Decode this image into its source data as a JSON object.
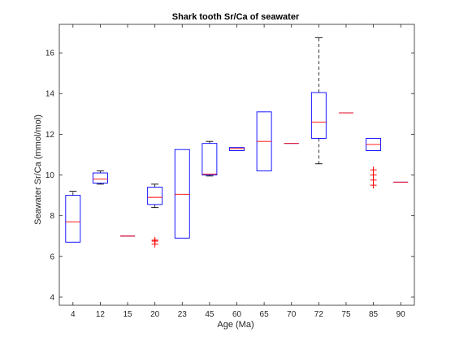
{
  "chart_data": {
    "type": "box",
    "title": "Shark tooth Sr/Ca of seawater",
    "xlabel": "Age (Ma)",
    "ylabel": "Seawater Sr/Ca (mmol/mol)",
    "ylim": [
      3.6,
      17.4
    ],
    "yticks": [
      4,
      6,
      8,
      10,
      12,
      14,
      16
    ],
    "grid": false,
    "categories": [
      "4",
      "12",
      "15",
      "20",
      "23",
      "45",
      "60",
      "65",
      "70",
      "72",
      "75",
      "85",
      "90"
    ],
    "boxes": [
      {
        "whisker_low": 6.7,
        "q1": 6.7,
        "median": 7.7,
        "q3": 9.0,
        "whisker_high": 9.2,
        "outliers": []
      },
      {
        "whisker_low": 9.55,
        "q1": 9.6,
        "median": 9.8,
        "q3": 10.1,
        "whisker_high": 10.2,
        "outliers": []
      },
      {
        "whisker_low": 7.0,
        "q1": 7.0,
        "median": 7.0,
        "q3": 7.0,
        "whisker_high": 7.0,
        "outliers": []
      },
      {
        "whisker_low": 8.4,
        "q1": 8.55,
        "median": 8.9,
        "q3": 9.4,
        "whisker_high": 9.55,
        "outliers": [
          6.6,
          6.75,
          6.8
        ]
      },
      {
        "whisker_low": 6.9,
        "q1": 6.9,
        "median": 9.05,
        "q3": 11.25,
        "whisker_high": 11.25,
        "outliers": []
      },
      {
        "whisker_low": 9.95,
        "q1": 10.0,
        "median": 10.05,
        "q3": 11.55,
        "whisker_high": 11.65,
        "outliers": []
      },
      {
        "whisker_low": 11.2,
        "q1": 11.2,
        "median": 11.3,
        "q3": 11.35,
        "whisker_high": 11.35,
        "outliers": []
      },
      {
        "whisker_low": 10.2,
        "q1": 10.2,
        "median": 11.65,
        "q3": 13.1,
        "whisker_high": 13.1,
        "outliers": []
      },
      {
        "whisker_low": 11.55,
        "q1": 11.55,
        "median": 11.55,
        "q3": 11.55,
        "whisker_high": 11.55,
        "outliers": []
      },
      {
        "whisker_low": 10.55,
        "q1": 11.8,
        "median": 12.6,
        "q3": 14.05,
        "whisker_high": 16.75,
        "outliers": []
      },
      {
        "whisker_low": 13.05,
        "q1": 13.05,
        "median": 13.05,
        "q3": 13.05,
        "whisker_high": 13.05,
        "outliers": []
      },
      {
        "whisker_low": 11.2,
        "q1": 11.2,
        "median": 11.5,
        "q3": 11.8,
        "whisker_high": 11.8,
        "outliers": [
          9.5,
          9.75,
          10.0,
          10.25
        ]
      },
      {
        "whisker_low": 9.65,
        "q1": 9.65,
        "median": 9.65,
        "q3": 9.65,
        "whisker_high": 9.65,
        "outliers": []
      }
    ],
    "colors": {
      "box": "#0000ff",
      "median": "#ff0000",
      "outlier": "#ff0000",
      "whisker": "#000000",
      "axis": "#262626"
    }
  }
}
